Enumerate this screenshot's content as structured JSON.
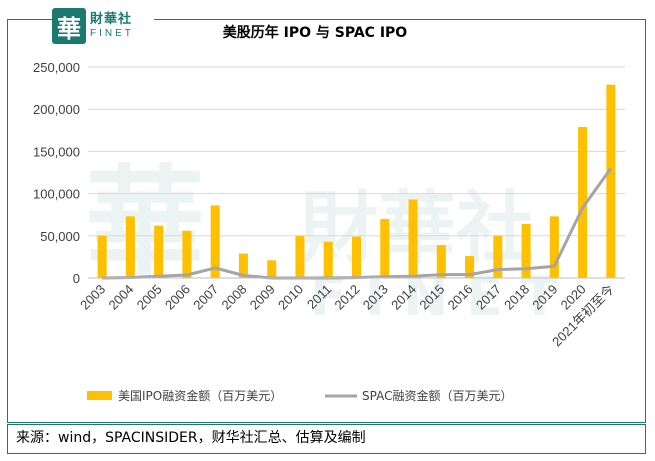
{
  "logo": {
    "mark": "華",
    "cn": "財華社",
    "en": "FINET"
  },
  "source_text": "来源：wind，SPACINSIDER，财华社汇总、估算及编制",
  "colors": {
    "ipo": "#FFC000",
    "spac": "#A5A5A5",
    "frame": "#1A7A6E"
  },
  "chart_data": {
    "type": "bar",
    "title": "美股历年 IPO 与 SPAC IPO",
    "categories": [
      "2003",
      "2004",
      "2005",
      "2006",
      "2007",
      "2008",
      "2009",
      "2010",
      "2011",
      "2012",
      "2013",
      "2014",
      "2015",
      "2016",
      "2017",
      "2018",
      "2019",
      "2020",
      "2021年初至今"
    ],
    "ylim": [
      0,
      250000
    ],
    "yticks": [
      0,
      50000,
      100000,
      150000,
      200000,
      250000
    ],
    "ytick_labels": [
      "0",
      "50,000",
      "100,000",
      "150,000",
      "200,000",
      "250,000"
    ],
    "grid": true,
    "legend_position": "bottom",
    "series": [
      {
        "name": "美国IPO融资金额（百万美元）",
        "type": "bar",
        "values": [
          50000,
          73000,
          62000,
          56000,
          86000,
          29000,
          21000,
          50000,
          43000,
          49000,
          70000,
          93000,
          39000,
          26000,
          50000,
          64000,
          73000,
          179000,
          229000
        ]
      },
      {
        "name": "SPAC融资金额（百万美元）",
        "type": "line",
        "values": [
          0,
          500,
          2000,
          3500,
          12000,
          3000,
          0,
          0,
          0,
          500,
          1500,
          2000,
          4000,
          4000,
          10000,
          11000,
          14000,
          83000,
          130000
        ]
      }
    ]
  }
}
